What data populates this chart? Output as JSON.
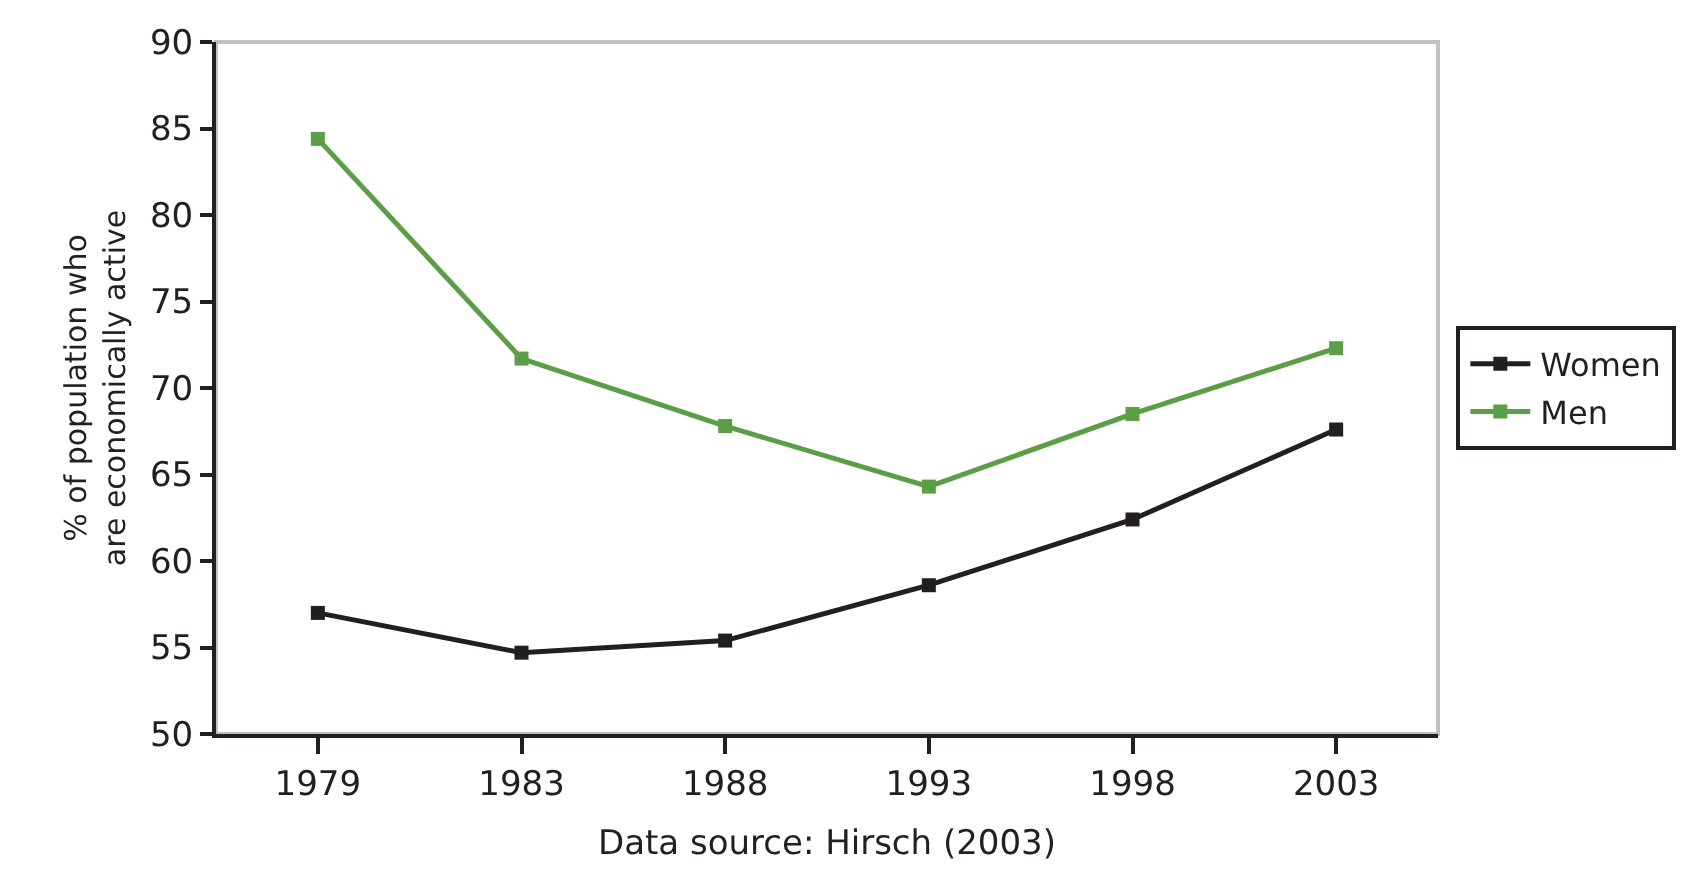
{
  "chart_data": {
    "type": "line",
    "ylabel": "% of population who are economically active",
    "annotations": [
      "Data source: Hirsch (2003)"
    ],
    "categories": [
      "1979",
      "1983",
      "1988",
      "1993",
      "1998",
      "2003"
    ],
    "series": [
      {
        "name": "Women",
        "color": "#231f20",
        "values": [
          57.0,
          54.7,
          55.4,
          58.6,
          62.4,
          67.6
        ]
      },
      {
        "name": "Men",
        "color": "#5a9e45",
        "values": [
          84.4,
          71.7,
          67.8,
          64.3,
          68.5,
          72.3
        ]
      }
    ],
    "ylim": [
      50,
      90
    ],
    "yticks": [
      50,
      55,
      60,
      65,
      70,
      75,
      80,
      85,
      90
    ],
    "grid": false,
    "legend": "right",
    "marker": "square",
    "line_style": "solid"
  }
}
